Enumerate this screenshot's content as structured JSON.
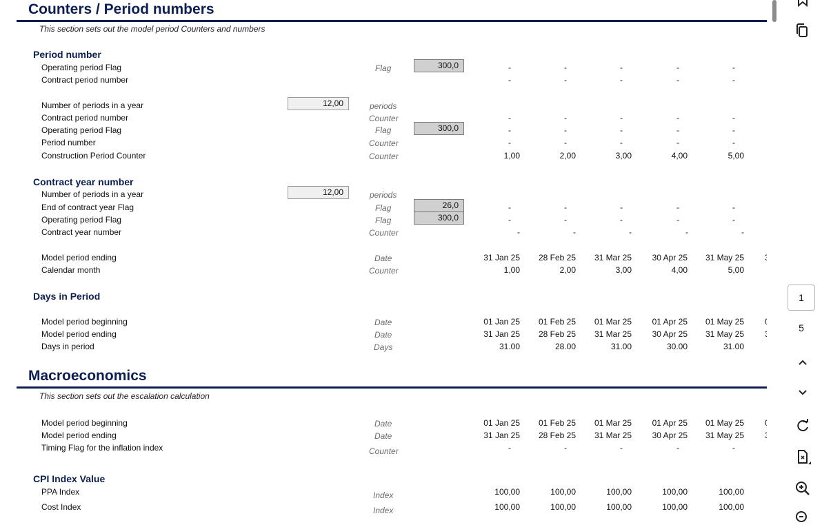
{
  "sections": {
    "counters": {
      "title": "Counters / Period numbers",
      "description": "This section sets out the model period Counters and numbers"
    },
    "macro": {
      "title": "Macroeconomics",
      "description": "This section sets out the escalation calculation"
    }
  },
  "subsections": {
    "period_number": "Period number",
    "contract_year_number": "Contract year number",
    "days_in_period": "Days in Period",
    "cpi_index_value": "CPI Index Value"
  },
  "rows": [
    {
      "label": "Operating period Flag",
      "unit": "Flag",
      "input": "300,0",
      "input_style": "dark",
      "cells": [
        "-",
        "-",
        "-",
        "-",
        "-"
      ]
    },
    {
      "label": "Contract period number",
      "unit": "",
      "cells": [
        "-",
        "-",
        "-",
        "-",
        "-"
      ]
    },
    {
      "label": "Number of periods in a year",
      "unit": "periods",
      "input": "12,00",
      "input_style": "light",
      "cells": []
    },
    {
      "label": "Contract period number",
      "unit": "Counter",
      "cells": [
        "-",
        "-",
        "-",
        "-",
        "-"
      ]
    },
    {
      "label": "Operating period Flag",
      "unit": "Flag",
      "input": "300,0",
      "input_style": "dark",
      "cells": [
        "-",
        "-",
        "-",
        "-",
        "-"
      ]
    },
    {
      "label": "Period number",
      "unit": "Counter",
      "cells": [
        "-",
        "-",
        "-",
        "-",
        "-"
      ]
    },
    {
      "label": "Construction Period Counter",
      "unit": "Counter",
      "cells": [
        "1,00",
        "2,00",
        "3,00",
        "4,00",
        "5,00"
      ]
    },
    {
      "label": "Number of periods in a year",
      "unit": "periods",
      "input": "12,00",
      "input_style": "light",
      "cells": []
    },
    {
      "label": "End of contract year Flag",
      "unit": "Flag",
      "input": "26,0",
      "input_style": "dark",
      "cells": [
        "-",
        "-",
        "-",
        "-",
        "-"
      ]
    },
    {
      "label": "Operating period Flag",
      "unit": "Flag",
      "input": "300,0",
      "input_style": "dark",
      "cells": [
        "-",
        "-",
        "-",
        "-",
        "-"
      ]
    },
    {
      "label": "Contract year number",
      "unit": "Counter",
      "cells": [
        "-",
        "-",
        "-",
        "-",
        "-"
      ]
    },
    {
      "label": "Model period ending",
      "unit": "Date",
      "cells": [
        "31 Jan 25",
        "28 Feb 25",
        "31 Mar 25",
        "30 Apr 25",
        "31 May 25"
      ],
      "clip": "3"
    },
    {
      "label": "Calendar month",
      "unit": "Counter",
      "cells": [
        "1,00",
        "2,00",
        "3,00",
        "4,00",
        "5,00"
      ]
    },
    {
      "label": "Model period beginning",
      "unit": "Date",
      "cells": [
        "01 Jan 25",
        "01 Feb 25",
        "01 Mar 25",
        "01 Apr 25",
        "01 May 25"
      ],
      "clip": "0"
    },
    {
      "label": "Model period ending",
      "unit": "Date",
      "cells": [
        "31 Jan 25",
        "28 Feb 25",
        "31 Mar 25",
        "30 Apr 25",
        "31 May 25"
      ],
      "clip": "3"
    },
    {
      "label": "Days in period",
      "unit": "Days",
      "cells": [
        "31.00",
        "28.00",
        "31.00",
        "30.00",
        "31.00"
      ]
    },
    {
      "label": "Model period beginning",
      "unit": "Date",
      "cells": [
        "01 Jan 25",
        "01 Feb 25",
        "01 Mar 25",
        "01 Apr 25",
        "01 May 25"
      ],
      "clip": "0"
    },
    {
      "label": "Model period ending",
      "unit": "Date",
      "cells": [
        "31 Jan 25",
        "28 Feb 25",
        "31 Mar 25",
        "30 Apr 25",
        "31 May 25"
      ],
      "clip": "3"
    },
    {
      "label": "Timing Flag for the inflation index",
      "unit": "Counter",
      "cells": [
        "-",
        "-",
        "-",
        "-",
        "-"
      ]
    },
    {
      "label": "PPA Index",
      "unit": "Index",
      "cells": [
        "100,00",
        "100,00",
        "100,00",
        "100,00",
        "100,00"
      ]
    },
    {
      "label": "Cost Index",
      "unit": "Index",
      "cells": [
        "100,00",
        "100,00",
        "100,00",
        "100,00",
        "100,00"
      ]
    }
  ],
  "viewer": {
    "current_page": "1",
    "total_pages": "5",
    "icons": [
      "bookmark-icon",
      "copy-icon",
      "chevron-up-icon",
      "chevron-down-icon",
      "rotate-icon",
      "page-fit-icon",
      "zoom-in-icon",
      "zoom-out-icon"
    ]
  }
}
